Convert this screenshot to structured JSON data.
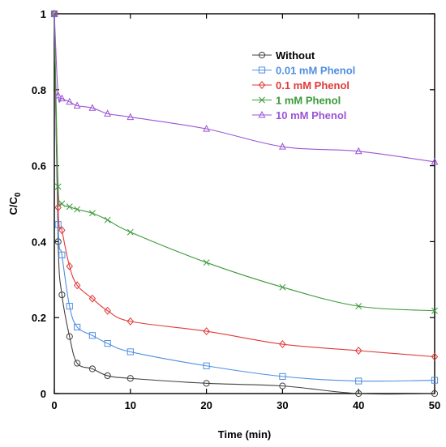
{
  "chart_data": {
    "type": "line",
    "title": "",
    "xlabel": "Time (min)",
    "ylabel": {
      "main": "C/C",
      "sub": "0"
    },
    "xlim": [
      0,
      50
    ],
    "ylim": [
      0,
      1
    ],
    "xticks": [
      "0",
      "10",
      "20",
      "30",
      "40",
      "50"
    ],
    "yticks": [
      "0",
      "0.2",
      "0.4",
      "0.6",
      "0.8",
      "1"
    ],
    "grid": false,
    "legend_position": "top-right",
    "series": [
      {
        "name": "Without",
        "color": "#404040",
        "marker": "circle",
        "x": [
          0,
          0.5,
          1,
          2,
          3,
          5,
          7,
          10,
          20,
          30,
          40,
          50
        ],
        "y": [
          1.0,
          0.4,
          0.26,
          0.15,
          0.08,
          0.065,
          0.047,
          0.04,
          0.027,
          0.02,
          0.0,
          0.0
        ]
      },
      {
        "name": "0.01 mM Phenol",
        "color": "#4f8fe0",
        "marker": "square",
        "x": [
          0,
          0.5,
          1,
          2,
          3,
          5,
          7,
          10,
          20,
          30,
          40,
          50
        ],
        "y": [
          1.0,
          0.445,
          0.365,
          0.23,
          0.175,
          0.153,
          0.132,
          0.11,
          0.073,
          0.045,
          0.033,
          0.035
        ]
      },
      {
        "name": "0.1 mM Phenol",
        "color": "#e03a3a",
        "marker": "diamond",
        "x": [
          0,
          0.5,
          1,
          2,
          3,
          5,
          7,
          10,
          20,
          30,
          40,
          50
        ],
        "y": [
          1.0,
          0.49,
          0.43,
          0.335,
          0.285,
          0.25,
          0.218,
          0.19,
          0.164,
          0.13,
          0.113,
          0.097
        ]
      },
      {
        "name": "1 mM Phenol",
        "color": "#3a9a3a",
        "marker": "x",
        "x": [
          0,
          0.5,
          1,
          2,
          3,
          5,
          7,
          10,
          20,
          30,
          40,
          50
        ],
        "y": [
          1.0,
          0.545,
          0.5,
          0.492,
          0.485,
          0.475,
          0.457,
          0.425,
          0.345,
          0.28,
          0.23,
          0.218
        ]
      },
      {
        "name": "10 mM Phenol",
        "color": "#9b55d6",
        "marker": "triangle",
        "x": [
          0,
          0.5,
          1,
          2,
          3,
          5,
          7,
          10,
          20,
          30,
          40,
          50
        ],
        "y": [
          1.0,
          0.785,
          0.777,
          0.768,
          0.758,
          0.752,
          0.737,
          0.728,
          0.697,
          0.65,
          0.638,
          0.61
        ]
      }
    ]
  }
}
